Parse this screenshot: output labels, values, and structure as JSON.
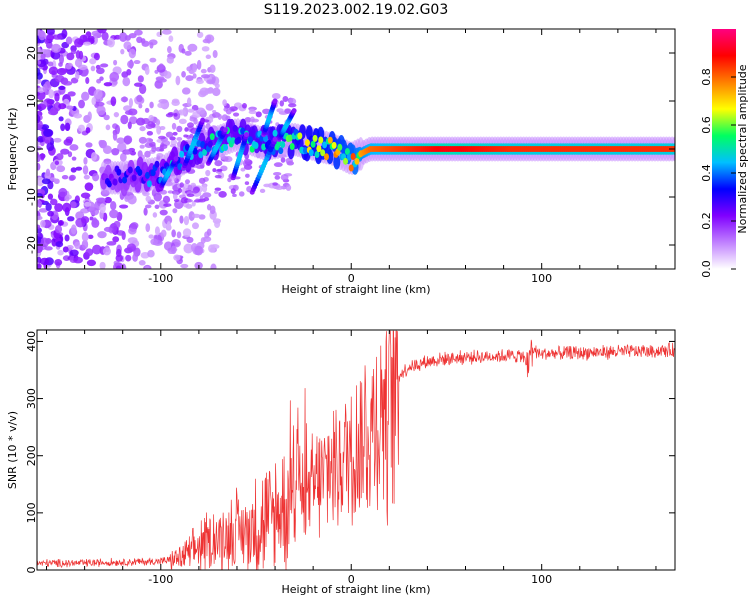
{
  "title": "S119.2023.002.19.02.G03",
  "chart_data": [
    {
      "type": "heatmap",
      "xlabel": "Height of straight line (km)",
      "ylabel": "Frequency (Hz)",
      "xlim": [
        -165,
        170
      ],
      "ylim": [
        -25,
        25
      ],
      "x_ticks": [
        -100,
        0,
        100
      ],
      "y_ticks": [
        -20,
        -10,
        0,
        10,
        20
      ],
      "colorbar": {
        "label": "Normalized spectral amplitude",
        "range": [
          0,
          1
        ],
        "ticks": [
          0.0,
          0.2,
          0.4,
          0.6,
          0.8
        ],
        "colors": [
          "#ffffff",
          "#c080ff",
          "#8000ff",
          "#0000ff",
          "#00c0ff",
          "#00ff60",
          "#ffff00",
          "#ff8000",
          "#ff0000",
          "#ff0080"
        ]
      },
      "ridge": [
        {
          "x": -120,
          "f": -6,
          "a": 0.3
        },
        {
          "x": -100,
          "f": -5,
          "a": 0.4
        },
        {
          "x": -80,
          "f": 0,
          "a": 0.45
        },
        {
          "x": -60,
          "f": 3,
          "a": 0.45
        },
        {
          "x": -45,
          "f": 1,
          "a": 0.5
        },
        {
          "x": -30,
          "f": 2,
          "a": 0.55
        },
        {
          "x": -20,
          "f": 1,
          "a": 0.6
        },
        {
          "x": -10,
          "f": 0,
          "a": 0.65
        },
        {
          "x": 0,
          "f": -2,
          "a": 0.7
        },
        {
          "x": 10,
          "f": 0,
          "a": 0.8
        },
        {
          "x": 50,
          "f": 0,
          "a": 0.9
        },
        {
          "x": 85,
          "f": 0,
          "a": 0.85
        },
        {
          "x": 130,
          "f": 0,
          "a": 0.85
        },
        {
          "x": 170,
          "f": 0,
          "a": 0.85
        }
      ]
    },
    {
      "type": "line",
      "xlabel": "Height of straight line (km)",
      "ylabel": "SNR (10 * v/v)",
      "xlim": [
        -165,
        170
      ],
      "ylim": [
        0,
        420
      ],
      "x_ticks": [
        -100,
        0,
        100
      ],
      "y_ticks": [
        0,
        100,
        200,
        300,
        400
      ],
      "line_color": "#ee3333",
      "series": [
        {
          "x": [
            -165,
            -140,
            -120,
            -100,
            -90,
            -80,
            -70,
            -60,
            -50,
            -40,
            -35,
            -30,
            -28,
            -25,
            -20,
            -10,
            0,
            10,
            15,
            20,
            25,
            30,
            40,
            50,
            60,
            80,
            90,
            93,
            95,
            100,
            120,
            140,
            160,
            170
          ],
          "values": [
            12,
            12,
            14,
            15,
            20,
            40,
            55,
            65,
            75,
            95,
            110,
            140,
            200,
            100,
            140,
            180,
            210,
            240,
            270,
            320,
            340,
            355,
            365,
            370,
            372,
            375,
            375,
            350,
            385,
            378,
            380,
            382,
            383,
            385
          ]
        }
      ]
    }
  ]
}
